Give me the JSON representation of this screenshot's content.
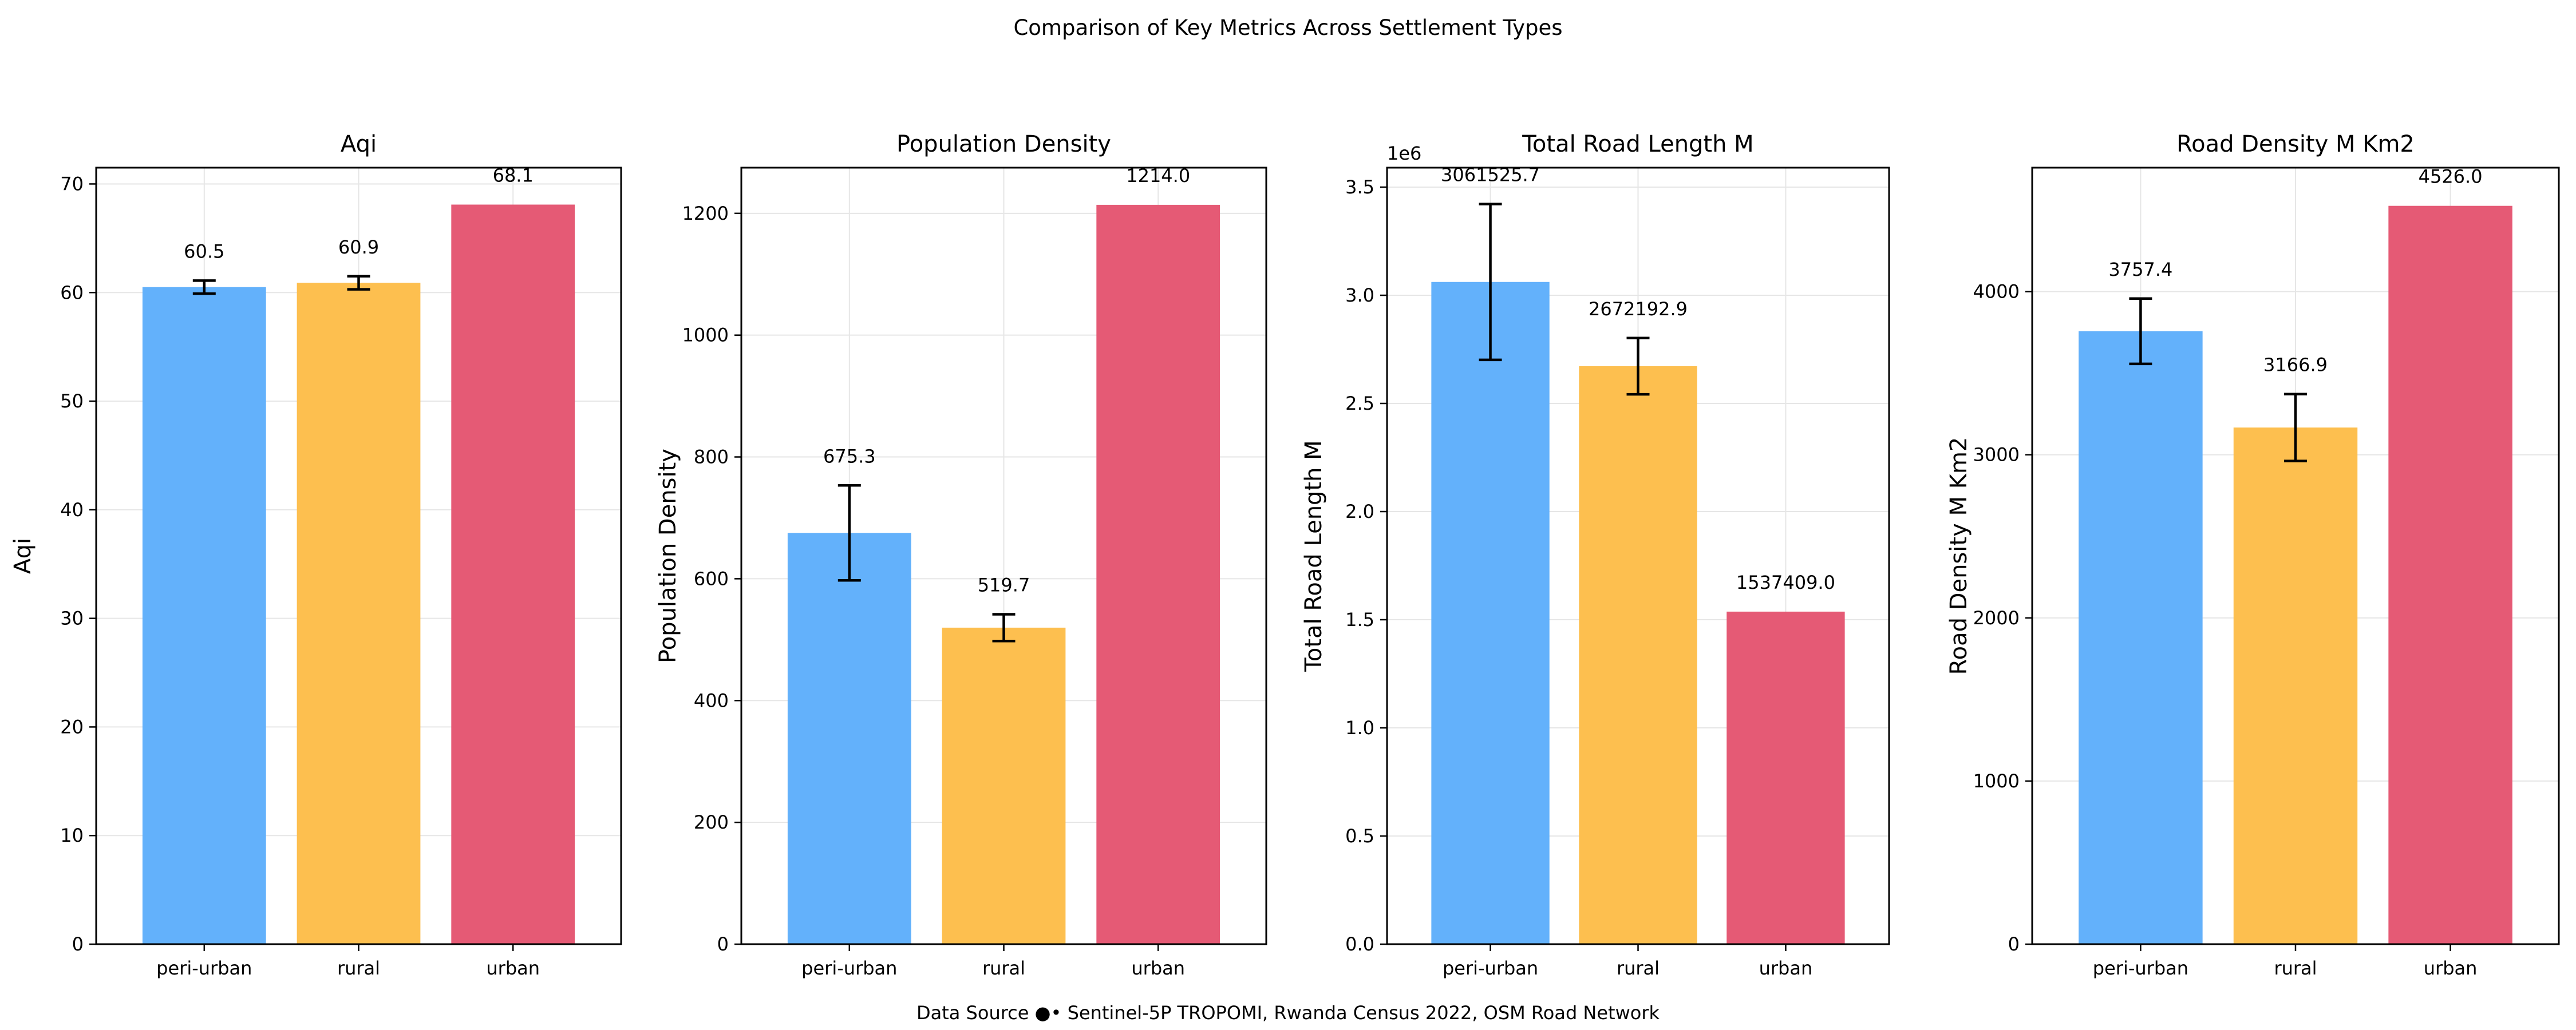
{
  "figure": {
    "title": "Comparison of Key Metrics Across Settlement Types",
    "footer": "Data Source ●• Sentinel-5P TROPOMI, Rwanda Census 2022, OSM Road Network"
  },
  "colors": {
    "peri-urban": "#63b1fb",
    "rural": "#fdbf4f",
    "urban": "#e55a75",
    "grid": "#e6e6e6",
    "errorbar": "#000000"
  },
  "chart_data": [
    {
      "type": "bar",
      "title": "Aqi",
      "xlabel": "",
      "ylabel": "Aqi",
      "categories": [
        "peri-urban",
        "rural",
        "urban"
      ],
      "values": [
        60.5,
        60.9,
        68.1
      ],
      "value_labels": [
        "60.5",
        "60.9",
        "68.1"
      ],
      "errors": [
        0.6,
        0.6,
        null
      ],
      "ylim": [
        0,
        71.5
      ],
      "yticks": [
        0,
        10,
        20,
        30,
        40,
        50,
        60,
        70
      ],
      "ytick_labels": [
        "0",
        "10",
        "20",
        "30",
        "40",
        "50",
        "60",
        "70"
      ],
      "offset_label": "",
      "grid": true
    },
    {
      "type": "bar",
      "title": "Population Density",
      "xlabel": "",
      "ylabel": "Population Density",
      "categories": [
        "peri-urban",
        "rural",
        "urban"
      ],
      "values": [
        675.3,
        519.7,
        1214.0
      ],
      "value_labels": [
        "675.3",
        "519.7",
        "1214.0"
      ],
      "errors": [
        78,
        22,
        null
      ],
      "ylim": [
        0,
        1275
      ],
      "yticks": [
        0,
        200,
        400,
        600,
        800,
        1000,
        1200
      ],
      "ytick_labels": [
        "0",
        "200",
        "400",
        "600",
        "800",
        "1000",
        "1200"
      ],
      "offset_label": "",
      "grid": true
    },
    {
      "type": "bar",
      "title": "Total Road Length M",
      "xlabel": "",
      "ylabel": "Total Road Length M",
      "categories": [
        "peri-urban",
        "rural",
        "urban"
      ],
      "values": [
        3061525.7,
        2672192.9,
        1537409.0
      ],
      "value_labels": [
        "3061525.7",
        "2672192.9",
        "1537409.0"
      ],
      "errors": [
        360000,
        130000,
        null
      ],
      "ylim": [
        0,
        3590000
      ],
      "yticks": [
        0,
        500000,
        1000000,
        1500000,
        2000000,
        2500000,
        3000000,
        3500000
      ],
      "ytick_labels": [
        "0.0",
        "0.5",
        "1.0",
        "1.5",
        "2.0",
        "2.5",
        "3.0",
        "3.5"
      ],
      "offset_label": "1e6",
      "grid": true
    },
    {
      "type": "bar",
      "title": "Road Density M Km2",
      "xlabel": "",
      "ylabel": "Road Density M Km2",
      "categories": [
        "peri-urban",
        "rural",
        "urban"
      ],
      "values": [
        3757.4,
        3166.9,
        4526.0
      ],
      "value_labels": [
        "3757.4",
        "3166.9",
        "4526.0"
      ],
      "errors": [
        200,
        205,
        null
      ],
      "ylim": [
        0,
        4760
      ],
      "yticks": [
        0,
        1000,
        2000,
        3000,
        4000
      ],
      "ytick_labels": [
        "0",
        "1000",
        "2000",
        "3000",
        "4000"
      ],
      "offset_label": "",
      "grid": true
    }
  ]
}
